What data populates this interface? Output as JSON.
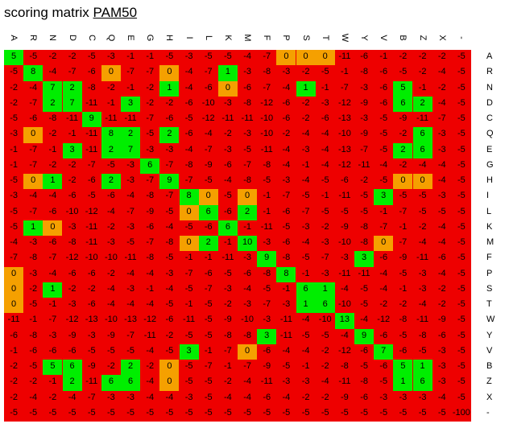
{
  "header": {
    "label": "scoring matrix",
    "matrix_name": "PAM50"
  },
  "colors": {
    "negative": "#ee0000",
    "zero": "#f5a000",
    "positive": "#00ee00"
  },
  "labels": [
    "A",
    "R",
    "N",
    "D",
    "C",
    "Q",
    "E",
    "G",
    "H",
    "I",
    "L",
    "K",
    "M",
    "F",
    "P",
    "S",
    "T",
    "W",
    "Y",
    "V",
    "B",
    "Z",
    "X",
    "-"
  ],
  "matrix": [
    [
      5,
      -5,
      -2,
      -2,
      -5,
      -3,
      -1,
      -1,
      -5,
      -3,
      -5,
      -5,
      -4,
      -7,
      0,
      0,
      0,
      -11,
      -6,
      -1,
      -2,
      -2,
      -2,
      -5
    ],
    [
      -5,
      8,
      -4,
      -7,
      -6,
      0,
      -7,
      -7,
      0,
      -4,
      -7,
      1,
      -3,
      -8,
      -3,
      -2,
      -5,
      -1,
      -8,
      -6,
      -5,
      -2,
      -4,
      -5
    ],
    [
      -2,
      -4,
      7,
      2,
      -8,
      -2,
      -1,
      -2,
      1,
      -4,
      -6,
      0,
      -6,
      -7,
      -4,
      1,
      -1,
      -7,
      -3,
      -6,
      5,
      -1,
      -2,
      -5
    ],
    [
      -2,
      -7,
      2,
      7,
      -11,
      -1,
      3,
      -2,
      -2,
      -6,
      -10,
      -3,
      -8,
      -12,
      -6,
      -2,
      -3,
      -12,
      -9,
      -6,
      6,
      2,
      -4,
      -5
    ],
    [
      -5,
      -6,
      -8,
      -11,
      9,
      -11,
      -11,
      -7,
      -6,
      -5,
      -12,
      -11,
      -11,
      -10,
      -6,
      -2,
      -6,
      -13,
      -3,
      -5,
      -9,
      -11,
      -7,
      -5
    ],
    [
      -3,
      0,
      -2,
      -1,
      -11,
      8,
      2,
      -5,
      2,
      -6,
      -4,
      -2,
      -3,
      -10,
      -2,
      -4,
      -4,
      -10,
      -9,
      -5,
      -2,
      6,
      -3,
      -5
    ],
    [
      -1,
      -7,
      -1,
      3,
      -11,
      2,
      7,
      -3,
      -3,
      -4,
      -7,
      -3,
      -5,
      -11,
      -4,
      -3,
      -4,
      -13,
      -7,
      -5,
      2,
      6,
      -3,
      -5
    ],
    [
      -1,
      -7,
      -2,
      -2,
      -7,
      -5,
      -3,
      6,
      -7,
      -8,
      -9,
      -6,
      -7,
      -8,
      -4,
      -1,
      -4,
      -12,
      -11,
      -4,
      -2,
      -4,
      -4,
      -5
    ],
    [
      -5,
      0,
      1,
      -2,
      -6,
      2,
      -3,
      -7,
      9,
      -7,
      -5,
      -4,
      -8,
      -5,
      -3,
      -4,
      -5,
      -6,
      -2,
      -5,
      0,
      0,
      -4,
      -5
    ],
    [
      -3,
      -4,
      -4,
      -6,
      -5,
      -6,
      -4,
      -8,
      -7,
      8,
      0,
      -5,
      0,
      -1,
      -7,
      -5,
      -1,
      -11,
      -5,
      3,
      -5,
      -5,
      -3,
      -5
    ],
    [
      -5,
      -7,
      -6,
      -10,
      -12,
      -4,
      -7,
      -9,
      -5,
      0,
      6,
      -6,
      2,
      -1,
      -6,
      -7,
      -5,
      -5,
      -5,
      -1,
      -7,
      -5,
      -5,
      -5
    ],
    [
      -5,
      1,
      0,
      -3,
      -11,
      -2,
      -3,
      -6,
      -4,
      -5,
      -6,
      6,
      -1,
      -11,
      -5,
      -3,
      -2,
      -9,
      -8,
      -7,
      -1,
      -2,
      -4,
      -5
    ],
    [
      -4,
      -3,
      -6,
      -8,
      -11,
      -3,
      -5,
      -7,
      -8,
      0,
      2,
      -1,
      10,
      -3,
      -6,
      -4,
      -3,
      -10,
      -8,
      0,
      -7,
      -4,
      -4,
      -5
    ],
    [
      -7,
      -8,
      -7,
      -12,
      -10,
      -10,
      -11,
      -8,
      -5,
      -1,
      -1,
      -11,
      -3,
      9,
      -8,
      -5,
      -7,
      -3,
      3,
      -6,
      -9,
      -11,
      -6,
      -5
    ],
    [
      0,
      -3,
      -4,
      -6,
      -6,
      -2,
      -4,
      -4,
      -3,
      -7,
      -6,
      -5,
      -6,
      -8,
      8,
      -1,
      -3,
      -11,
      -11,
      -4,
      -5,
      -3,
      -4,
      -5
    ],
    [
      0,
      -2,
      1,
      -2,
      -2,
      -4,
      -3,
      -1,
      -4,
      -5,
      -7,
      -3,
      -4,
      -5,
      -1,
      6,
      1,
      -4,
      -5,
      -4,
      -1,
      -3,
      -2,
      -5
    ],
    [
      0,
      -5,
      -1,
      -3,
      -6,
      -4,
      -4,
      -4,
      -5,
      -1,
      -5,
      -2,
      -3,
      -7,
      -3,
      1,
      6,
      -10,
      -5,
      -2,
      -2,
      -4,
      -2,
      -5
    ],
    [
      -11,
      -1,
      -7,
      -12,
      -13,
      -10,
      -13,
      -12,
      -6,
      -11,
      -5,
      -9,
      -10,
      -3,
      -11,
      -4,
      -10,
      13,
      -4,
      -12,
      -8,
      -11,
      -9,
      -5
    ],
    [
      -6,
      -8,
      -3,
      -9,
      -3,
      -9,
      -7,
      -11,
      -2,
      -5,
      -5,
      -8,
      -8,
      3,
      -11,
      -5,
      -5,
      -4,
      9,
      -6,
      -5,
      -8,
      -6,
      -5
    ],
    [
      -1,
      -6,
      -6,
      -6,
      -5,
      -5,
      -5,
      -4,
      -5,
      3,
      -1,
      -7,
      0,
      -6,
      -4,
      -4,
      -2,
      -12,
      -6,
      7,
      -6,
      -5,
      -3,
      -5
    ],
    [
      -2,
      -5,
      5,
      6,
      -9,
      -2,
      2,
      -2,
      0,
      -5,
      -7,
      -1,
      -7,
      -9,
      -5,
      -1,
      -2,
      -8,
      -5,
      -6,
      5,
      1,
      -3,
      -5
    ],
    [
      -2,
      -2,
      -1,
      2,
      -11,
      6,
      6,
      -4,
      0,
      -5,
      -5,
      -2,
      -4,
      -11,
      -3,
      -3,
      -4,
      -11,
      -8,
      -5,
      1,
      6,
      -3,
      -5
    ],
    [
      -2,
      -4,
      -2,
      -4,
      -7,
      -3,
      -3,
      -4,
      -4,
      -3,
      -5,
      -4,
      -4,
      -6,
      -4,
      -2,
      -2,
      -9,
      -6,
      -3,
      -3,
      -3,
      -4,
      -5
    ],
    [
      -5,
      -5,
      -5,
      -5,
      -5,
      -5,
      -5,
      -5,
      -5,
      -5,
      -5,
      -5,
      -5,
      -5,
      -5,
      -5,
      -5,
      -5,
      -5,
      -5,
      -5,
      -5,
      -5,
      -100
    ]
  ]
}
